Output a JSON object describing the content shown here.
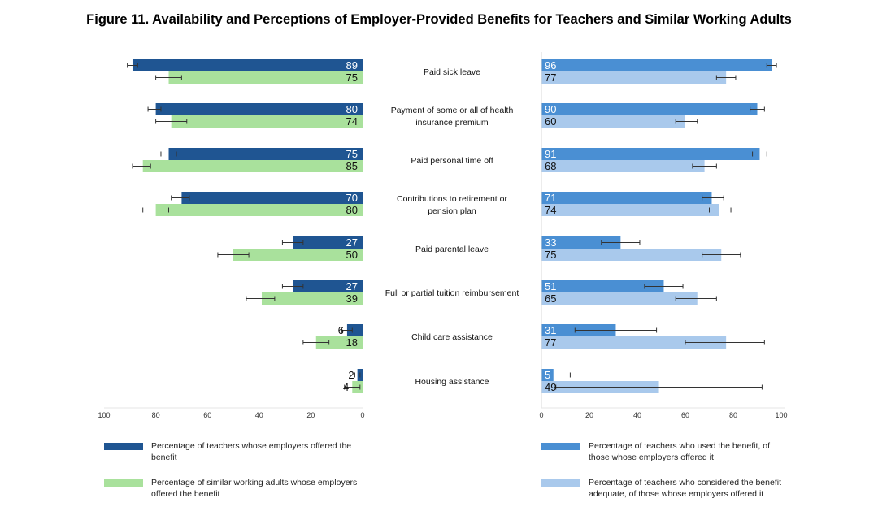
{
  "title": "Figure 11. Availability and Perceptions of Employer-Provided Benefits for Teachers and Similar Working Adults",
  "colors": {
    "teachers_offered": "#1f5592",
    "adults_offered": "#a9e19c",
    "used": "#4a8fd3",
    "adequate": "#a9c9ec",
    "errorbar": "#333333"
  },
  "chart_data": [
    {
      "type": "bar",
      "orientation": "horizontal-reversed",
      "xlim": [
        100,
        0
      ],
      "xticks": [
        "100",
        "80",
        "60",
        "40",
        "20",
        "0"
      ],
      "categories": [
        "Paid sick leave",
        "Payment of some or all of health insurance premium",
        "Paid personal time off",
        "Contributions to retirement or pension plan",
        "Paid parental leave",
        "Full or partial tuition reimbursement",
        "Child care assistance",
        "Housing assistance"
      ],
      "series": [
        {
          "name": "Percentage of teachers whose employers offered the benefit",
          "values": [
            89,
            80,
            75,
            70,
            27,
            27,
            6,
            2
          ],
          "error_low": [
            87,
            78,
            72,
            67,
            23,
            23,
            4,
            1
          ],
          "error_high": [
            91,
            83,
            78,
            74,
            31,
            31,
            8,
            3
          ]
        },
        {
          "name": "Percentage of similar working adults whose employers offered the benefit",
          "values": [
            75,
            74,
            85,
            80,
            50,
            39,
            18,
            4
          ],
          "error_low": [
            70,
            68,
            82,
            75,
            44,
            34,
            13,
            1
          ],
          "error_high": [
            80,
            80,
            89,
            85,
            56,
            45,
            23,
            7
          ]
        }
      ]
    },
    {
      "type": "bar",
      "orientation": "horizontal",
      "xlim": [
        0,
        100
      ],
      "xticks": [
        "0",
        "20",
        "40",
        "60",
        "80",
        "100"
      ],
      "categories": [
        "Paid sick leave",
        "Payment of some or all of health insurance premium",
        "Paid personal time off",
        "Contributions to retirement or pension plan",
        "Paid parental leave",
        "Full or partial tuition reimbursement",
        "Child care assistance",
        "Housing assistance"
      ],
      "series": [
        {
          "name": "Percentage of teachers who used the benefit, of those whose employers offered it",
          "values": [
            96,
            90,
            91,
            71,
            33,
            51,
            31,
            5
          ],
          "error_low": [
            94,
            87,
            88,
            67,
            25,
            43,
            14,
            0
          ],
          "error_high": [
            98,
            93,
            94,
            76,
            41,
            59,
            48,
            12
          ]
        },
        {
          "name": "Percentage of teachers who considered the benefit adequate, of those whose employers offered it",
          "values": [
            77,
            60,
            68,
            74,
            75,
            65,
            77,
            49
          ],
          "error_low": [
            73,
            56,
            63,
            70,
            67,
            56,
            60,
            6
          ],
          "error_high": [
            81,
            65,
            73,
            79,
            83,
            73,
            93,
            92
          ]
        }
      ]
    }
  ],
  "category_labels": [
    [
      "Paid sick leave"
    ],
    [
      "Payment of some or all of health",
      "insurance premium"
    ],
    [
      "Paid personal time off"
    ],
    [
      "Contributions to retirement or",
      "pension plan"
    ],
    [
      "Paid parental leave"
    ],
    [
      "Full or partial tuition reimbursement"
    ],
    [
      "Child care assistance"
    ],
    [
      "Housing assistance"
    ]
  ],
  "legend": [
    {
      "key": "teachers_offered",
      "text": "Percentage of teachers whose employers offered the benefit"
    },
    {
      "key": "adults_offered",
      "text": "Percentage of similar working adults whose employers offered the benefit"
    },
    {
      "key": "used",
      "text": "Percentage of teachers who used the benefit, of those whose employers offered it"
    },
    {
      "key": "adequate",
      "text": "Percentage of teachers who considered the benefit adequate, of those whose employers offered it"
    }
  ]
}
